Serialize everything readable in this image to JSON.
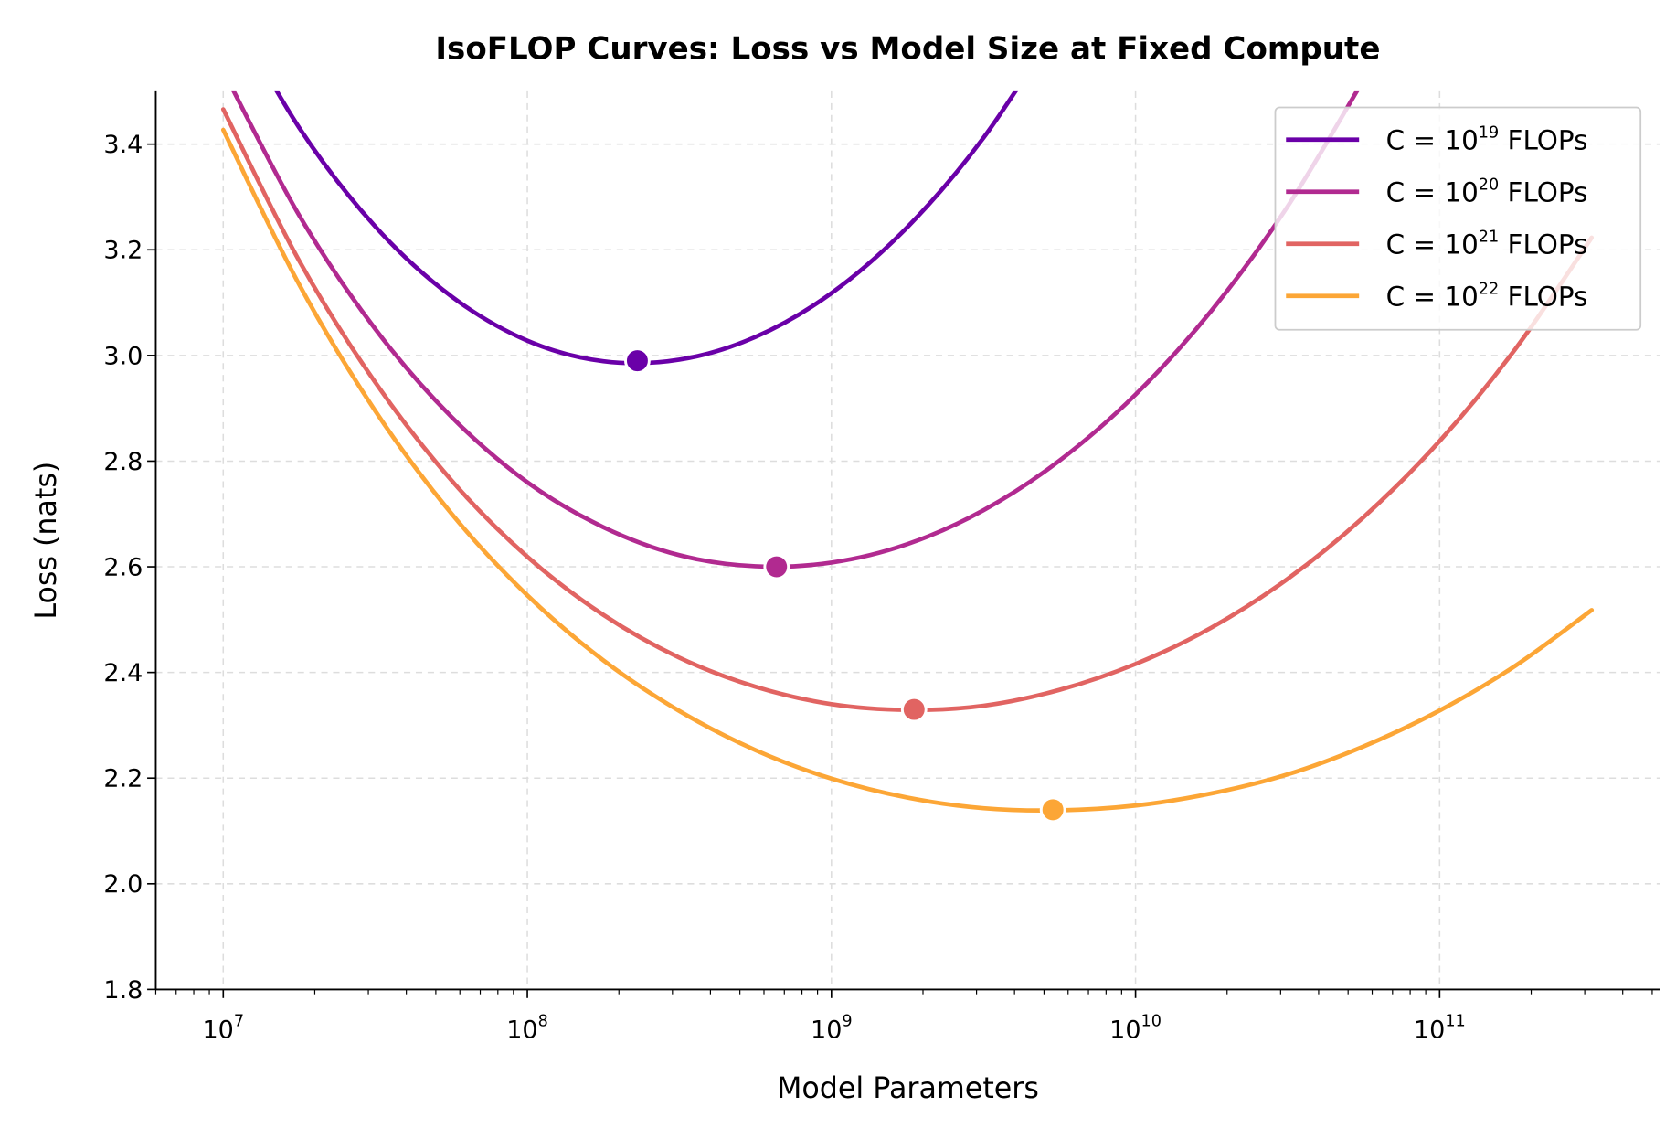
{
  "chart_data": {
    "type": "line",
    "title": "IsoFLOP Curves: Loss vs Model Size at Fixed Compute",
    "xlabel": "Model Parameters",
    "ylabel": "Loss (nats)",
    "xscale": "log",
    "xlim": [
      6000000.0,
      530000000000.0
    ],
    "ylim": [
      1.8,
      3.5
    ],
    "grid": true,
    "legend_position": "top-right",
    "x_ticks": [
      {
        "base": "10",
        "exp": "7",
        "value": 10000000.0
      },
      {
        "base": "10",
        "exp": "8",
        "value": 100000000.0
      },
      {
        "base": "10",
        "exp": "9",
        "value": 1000000000.0
      },
      {
        "base": "10",
        "exp": "10",
        "value": 10000000000.0
      },
      {
        "base": "10",
        "exp": "11",
        "value": 100000000000.0
      }
    ],
    "y_ticks": [
      "1.8",
      "2.0",
      "2.2",
      "2.4",
      "2.6",
      "2.8",
      "3.0",
      "3.2",
      "3.4"
    ],
    "x": [
      10000000.0,
      17780000.0,
      31620000.0,
      56230000.0,
      100000000.0,
      177800000.0,
      316200000.0,
      562300000.0,
      1000000000.0,
      1778000000.0,
      3162000000.0,
      5623000000.0,
      10000000000.0,
      17780000000.0,
      31620000000.0,
      56230000000.0,
      100000000000.0,
      177800000000.0,
      316200000000.0
    ],
    "series": [
      {
        "name": "C = 10^19 FLOPs",
        "label_base": "C = 10",
        "label_exp": "19",
        "label_suffix": " FLOPs",
        "color": "#6a00a8",
        "y": [
          3.68,
          3.431,
          3.244,
          3.112,
          3.028,
          2.989,
          2.992,
          3.035,
          3.118,
          3.243,
          3.412,
          3.629,
          null,
          null,
          null,
          null,
          null,
          null,
          null
        ],
        "optimum": {
          "x": 230000000.0,
          "y": 2.99
        }
      },
      {
        "name": "C = 10^20 FLOPs",
        "label_base": "C = 10",
        "label_exp": "20",
        "label_suffix": " FLOPs",
        "color": "#b12a90",
        "y": [
          3.539,
          3.265,
          3.05,
          2.884,
          2.76,
          2.675,
          2.622,
          2.601,
          2.608,
          2.643,
          2.707,
          2.801,
          2.926,
          3.085,
          3.282,
          3.522,
          null,
          null,
          null
        ],
        "optimum": {
          "x": 660000000.0,
          "y": 2.6
        }
      },
      {
        "name": "C = 10^21 FLOPs",
        "label_base": "C = 10",
        "label_exp": "21",
        "label_suffix": " FLOPs",
        "color": "#e16462",
        "y": [
          3.466,
          3.179,
          2.949,
          2.764,
          2.619,
          2.509,
          2.428,
          2.373,
          2.34,
          2.329,
          2.337,
          2.367,
          2.416,
          2.485,
          2.577,
          2.694,
          2.838,
          3.013,
          3.223
        ],
        "optimum": {
          "x": 1870000000.0,
          "y": 2.33
        }
      },
      {
        "name": "C = 10^22 FLOPs",
        "label_base": "C = 10",
        "label_exp": "22",
        "label_suffix": " FLOPs",
        "color": "#fca636",
        "y": [
          3.427,
          3.134,
          2.895,
          2.701,
          2.546,
          2.423,
          2.327,
          2.253,
          2.199,
          2.163,
          2.143,
          2.139,
          2.148,
          2.171,
          2.207,
          2.26,
          2.328,
          2.413,
          2.518
        ],
        "optimum": {
          "x": 5350000000.0,
          "y": 2.14
        }
      }
    ]
  }
}
